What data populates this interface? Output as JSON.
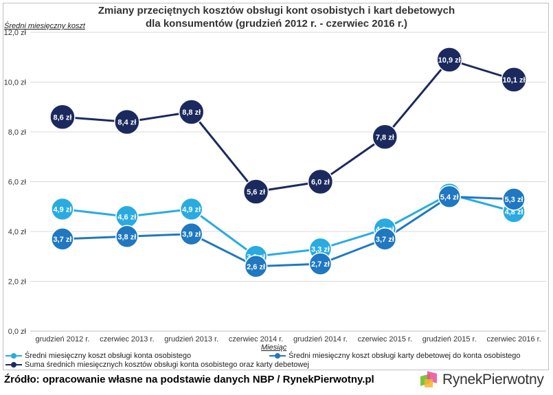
{
  "title_line1": "Zmiany przeciętnych kosztów obsługi kont osobistych i kart debetowych",
  "title_line2": "dla konsumentów (grudzień 2012 r. - czerwiec 2016 r.)",
  "source": "Źródło: opracowanie własne na podstawie danych NBP / RynekPierwotny.pl",
  "logo": {
    "text": "RynekPierwotny",
    "icon": "rynekpierwotny-logo-icon"
  },
  "chart_data": {
    "type": "line",
    "ylabel": "Średni miesięczny koszt",
    "xlabel": "Miesiąc",
    "ylim": [
      0,
      12
    ],
    "y_ticks": [
      "0,0 zł",
      "2,0 zł",
      "4,0 zł",
      "6,0 zł",
      "8,0 zł",
      "10,0 zł",
      "12,0 zł"
    ],
    "grid": "horizontal",
    "legend_position": "bottom",
    "categories": [
      "grudzień 2012 r.",
      "czerwiec 2013 r.",
      "grudzień 2013 r.",
      "czerwiec 2014 r.",
      "grudzień 2014 r.",
      "czerwiec 2015 r.",
      "grudzień 2015 r.",
      "czerwiec 2016 r."
    ],
    "series": [
      {
        "name": "Średni miesięczny koszt obsługi konta osobistego",
        "color": "#29abe2",
        "values": [
          4.9,
          4.6,
          4.9,
          3.0,
          3.3,
          4.1,
          5.5,
          4.8
        ],
        "labels": [
          "4,9 zł",
          "4,6 zł",
          "4,9 zł",
          "3,0 zł",
          "3,3 zł",
          "4,1 zł",
          "5,5 zł",
          "4,8 zł"
        ]
      },
      {
        "name": "Średni miesięczny koszt obsługi karty debetowej do konta osobistego",
        "color": "#1f78c1",
        "values": [
          3.7,
          3.8,
          3.9,
          2.6,
          2.7,
          3.7,
          5.4,
          5.3
        ],
        "labels": [
          "3,7 zł",
          "3,8 zł",
          "3,9 zł",
          "2,6 zł",
          "2,7 zł",
          "3,7 zł",
          "5,4 zł",
          "5,3 zł"
        ]
      },
      {
        "name": "Suma średnich miesięcznych kosztów obsługi konta osobistego oraz karty debetowej",
        "color": "#1b2a5e",
        "values": [
          8.6,
          8.4,
          8.8,
          5.6,
          6.0,
          7.8,
          10.9,
          10.1
        ],
        "labels": [
          "8,6 zł",
          "8,4 zł",
          "8,8 zł",
          "5,6 zł",
          "6,0 zł",
          "7,8 zł",
          "10,9 zł",
          "10,1 zł"
        ]
      }
    ]
  }
}
